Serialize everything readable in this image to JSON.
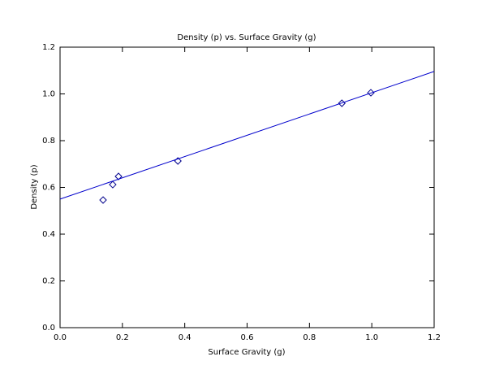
{
  "chart_data": {
    "type": "scatter",
    "title": "Density (p) vs. Surface Gravity (g)",
    "x_label": "Surface Gravity (g)",
    "y_label": "Density (p)",
    "series": [
      {
        "color": "#00008b",
        "x": [
          0.138,
          0.169,
          0.1875,
          0.378,
          0.904,
          0.997
        ],
        "values": [
          0.546,
          0.612,
          0.647,
          0.713,
          0.96,
          1.005
        ]
      },
      {
        "type": "line",
        "color": "#0000cc",
        "x": [
          0,
          1.2
        ],
        "values": [
          0.55,
          1.096
        ]
      }
    ],
    "xlim": [
      0,
      1.2
    ],
    "ylim": [
      0,
      1.2
    ],
    "xticks": [
      {
        "value": 0,
        "label": "0.0"
      },
      0.2,
      0.4,
      0.6,
      0.8,
      {
        "value": 1,
        "label": "1.0"
      },
      1.2
    ],
    "yticks": [
      {
        "value": 0,
        "label": "0.0"
      },
      0.2,
      0.4,
      0.6,
      0.8,
      {
        "value": 1,
        "label": "1.0"
      },
      1.2
    ]
  }
}
